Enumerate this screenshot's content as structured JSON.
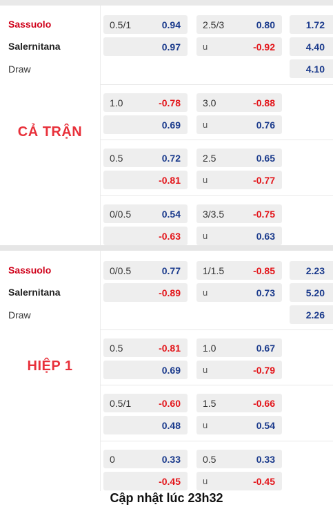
{
  "sections": [
    {
      "label": "CẢ TRẬN",
      "teams": {
        "home": "Sassuolo",
        "away": "Salernitana",
        "draw": "Draw"
      },
      "x12": {
        "home": "1.72",
        "away": "4.40",
        "draw": "4.10"
      },
      "rows": [
        {
          "hcap": "0.5/1",
          "hcap_home": "0.94",
          "hcap_away": "0.97",
          "ou": "2.5/3",
          "ou_over": "0.80",
          "ou_under": "-0.92",
          "u": "u"
        },
        {
          "hcap": "1.0",
          "hcap_home": "-0.78",
          "hcap_away": "0.69",
          "ou": "3.0",
          "ou_over": "-0.88",
          "ou_under": "0.76",
          "u": "u"
        },
        {
          "hcap": "0.5",
          "hcap_home": "0.72",
          "hcap_away": "-0.81",
          "ou": "2.5",
          "ou_over": "0.65",
          "ou_under": "-0.77",
          "u": "u"
        },
        {
          "hcap": "0/0.5",
          "hcap_home": "0.54",
          "hcap_away": "-0.63",
          "ou": "3/3.5",
          "ou_over": "-0.75",
          "ou_under": "0.63",
          "u": "u"
        }
      ]
    },
    {
      "label": "HIỆP 1",
      "teams": {
        "home": "Sassuolo",
        "away": "Salernitana",
        "draw": "Draw"
      },
      "x12": {
        "home": "2.23",
        "away": "5.20",
        "draw": "2.26"
      },
      "rows": [
        {
          "hcap": "0/0.5",
          "hcap_home": "0.77",
          "hcap_away": "-0.89",
          "ou": "1/1.5",
          "ou_over": "-0.85",
          "ou_under": "0.73",
          "u": "u"
        },
        {
          "hcap": "0.5",
          "hcap_home": "-0.81",
          "hcap_away": "0.69",
          "ou": "1.0",
          "ou_over": "0.67",
          "ou_under": "-0.79",
          "u": "u"
        },
        {
          "hcap": "0.5/1",
          "hcap_home": "-0.60",
          "hcap_away": "0.48",
          "ou": "1.5",
          "ou_over": "-0.66",
          "ou_under": "0.54",
          "u": "u"
        },
        {
          "hcap": "0",
          "hcap_home": "0.33",
          "hcap_away": "-0.45",
          "ou": "0.5",
          "ou_over": "0.33",
          "ou_under": "-0.45",
          "u": "u"
        }
      ]
    }
  ],
  "footer": "Cập nhật lúc 23h32"
}
